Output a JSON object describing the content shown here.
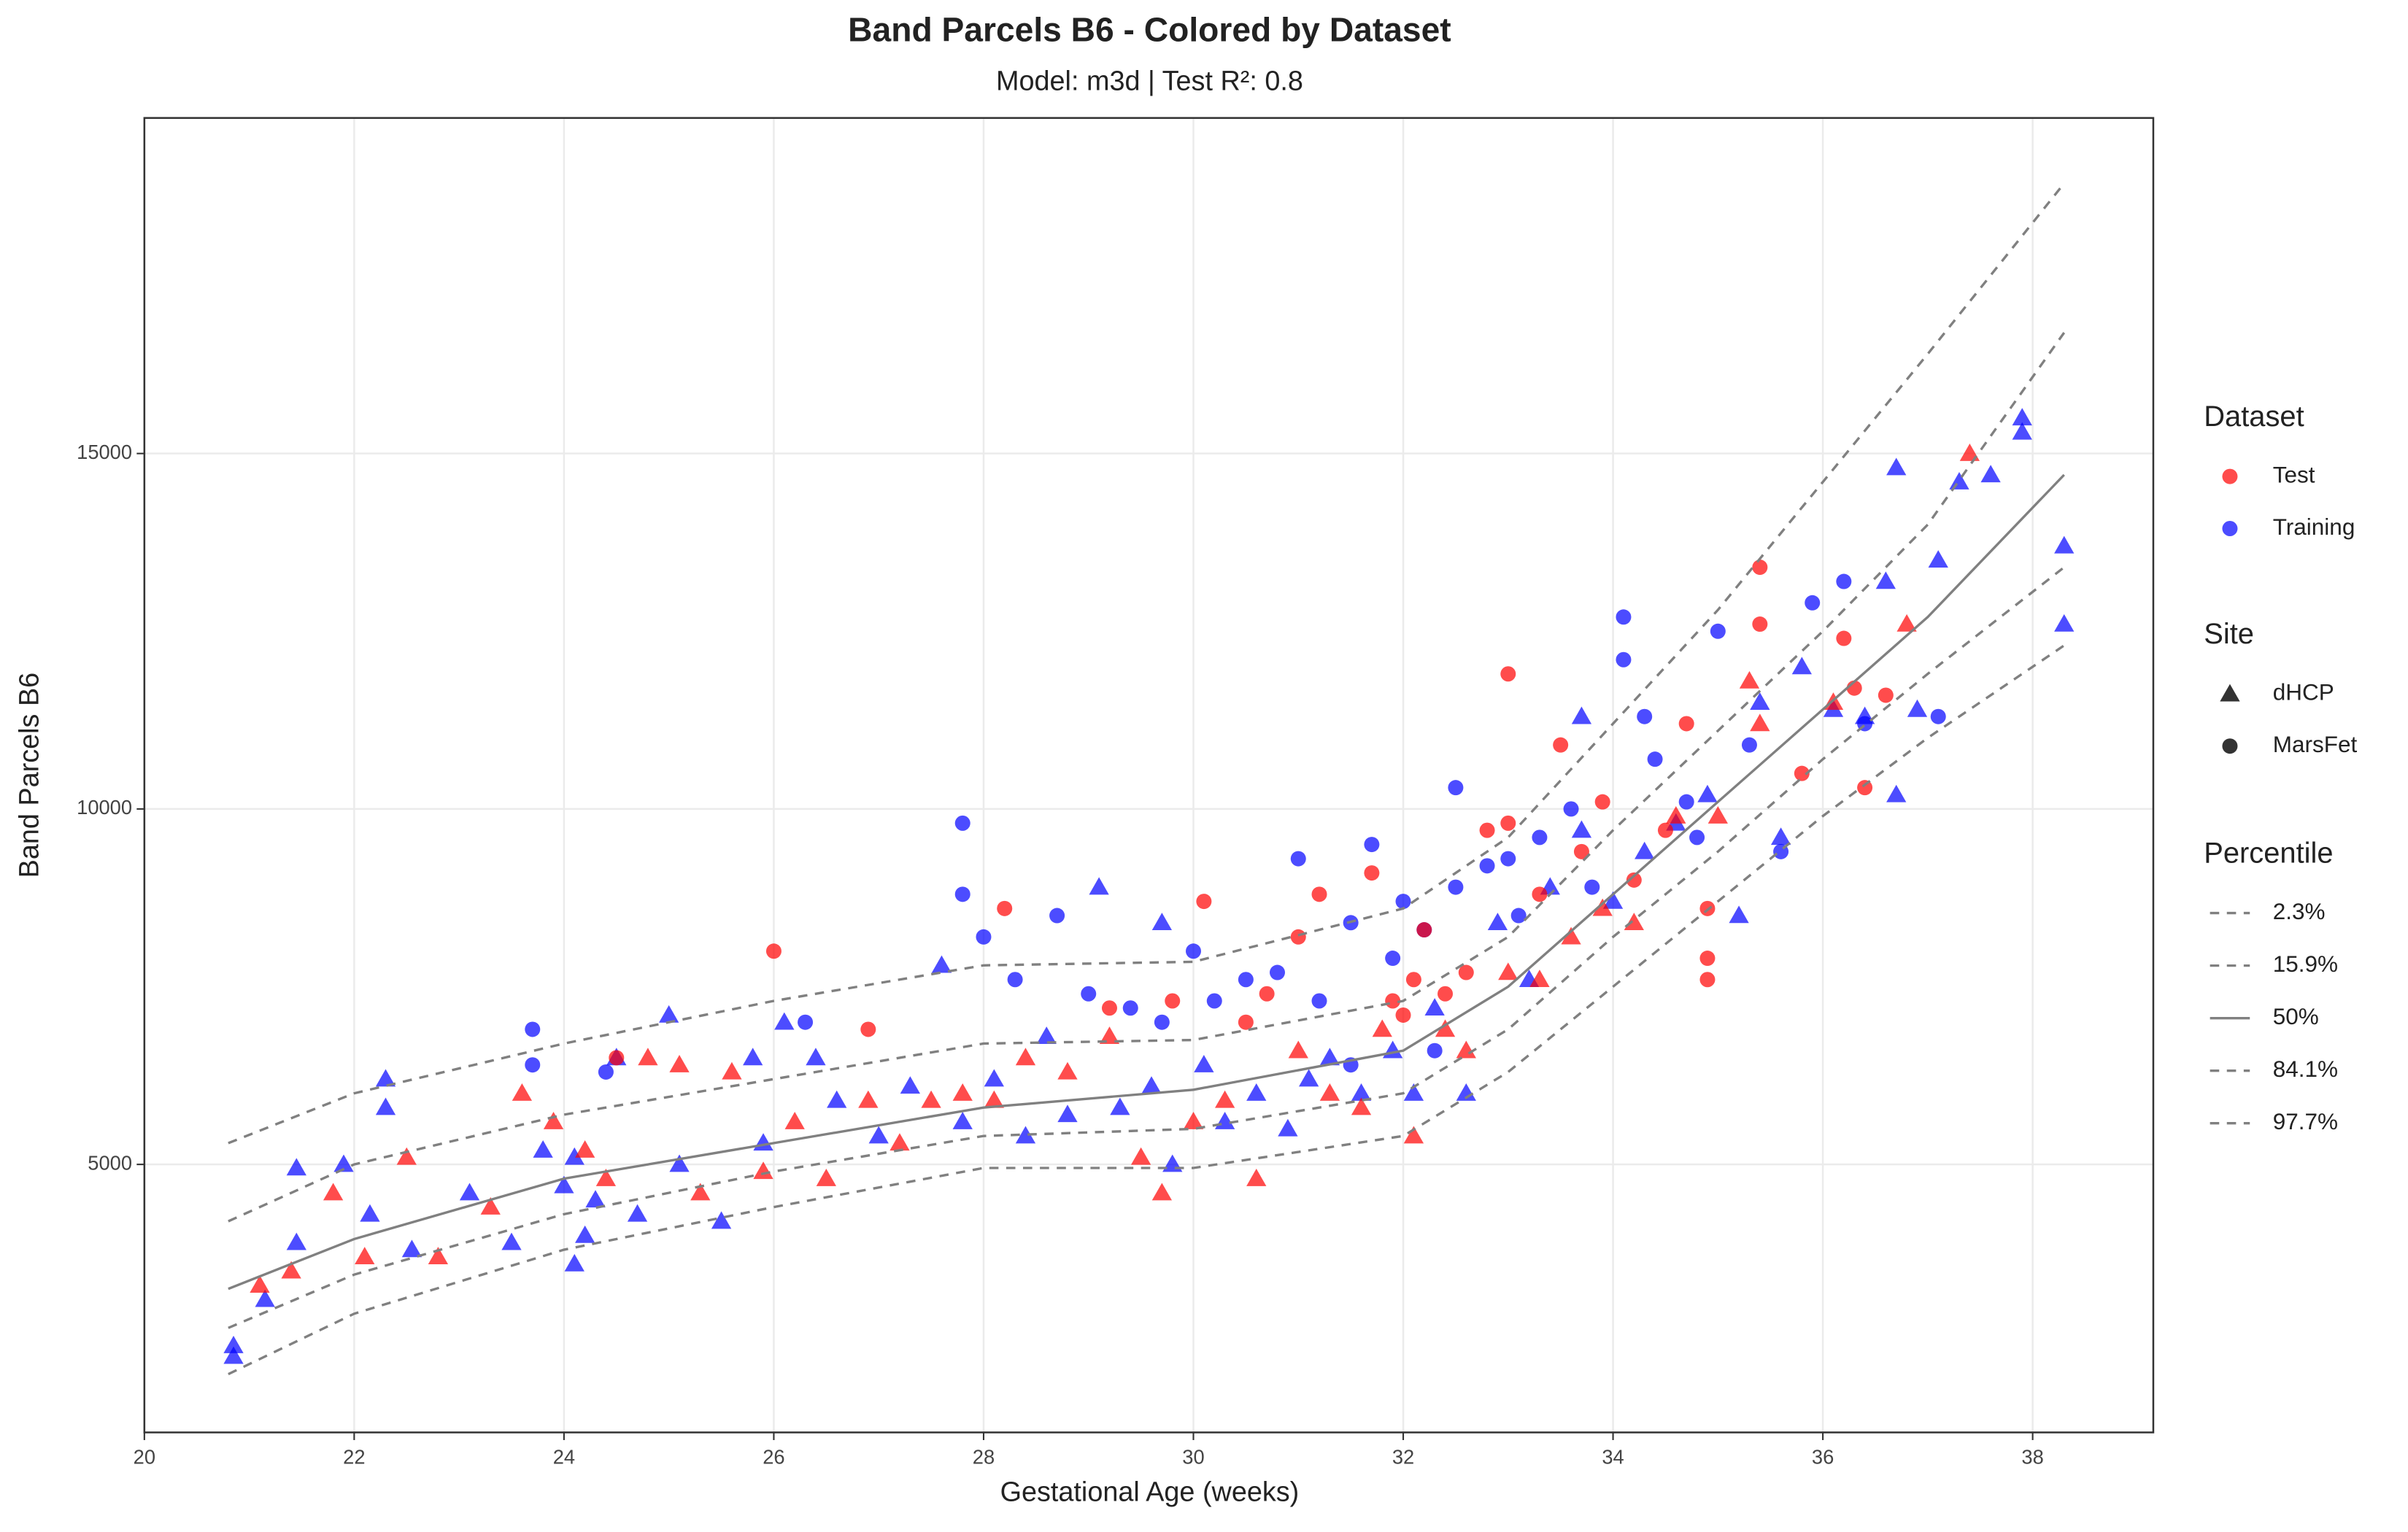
{
  "chart_data": {
    "type": "scatter",
    "title": "Band Parcels B6 - Colored by Dataset",
    "subtitle": "Model: m3d | Test R²: 0.8",
    "x_label": "Gestational Age (weeks)",
    "y_label": "Band Parcels B6",
    "xlim": [
      20,
      39.15
    ],
    "ylim": [
      1230,
      19720
    ],
    "xticks": [
      20,
      22,
      24,
      26,
      28,
      30,
      32,
      34,
      36,
      38
    ],
    "yticks": [
      5000,
      10000,
      15000
    ],
    "grid": true,
    "alpha": 0.7,
    "legend_position": "right",
    "dataset_legend": {
      "title": "Dataset",
      "entries": [
        {
          "name": "Test",
          "color": "#ff0000"
        },
        {
          "name": "Training",
          "color": "#0000ff"
        }
      ]
    },
    "site_legend": {
      "title": "Site",
      "entries": [
        {
          "name": "dHCP",
          "shape": "triangle"
        },
        {
          "name": "MarsFet",
          "shape": "circle"
        }
      ]
    },
    "series": [
      {
        "dataset": "Training",
        "site": "dHCP",
        "x": [
          20.85,
          20.85,
          21.15,
          21.45,
          21.45,
          21.9,
          22.15,
          22.3,
          22.3,
          22.55,
          23.1,
          23.5,
          23.8,
          24.0,
          24.1,
          24.1,
          24.2,
          24.3,
          24.5,
          24.7,
          25.0,
          25.1,
          25.5,
          25.8,
          25.9,
          26.1,
          26.4,
          26.6,
          27.0,
          27.3,
          27.6,
          27.8,
          28.1,
          28.4,
          28.6,
          28.8,
          29.1,
          29.3,
          29.6,
          29.7,
          29.8,
          30.1,
          30.3,
          30.6,
          30.9,
          31.1,
          31.3,
          31.6,
          31.9,
          32.1,
          32.3,
          32.6,
          32.9,
          33.2,
          33.4,
          33.7,
          33.7,
          34.0,
          34.3,
          34.6,
          34.9,
          35.2,
          35.4,
          35.6,
          35.8,
          36.1,
          36.4,
          36.6,
          36.7,
          36.7,
          36.9,
          37.1,
          37.3,
          37.6,
          37.9,
          37.9,
          38.3,
          38.3
        ],
        "y": [
          2450,
          2300,
          3100,
          4950,
          3900,
          5000,
          4300,
          6200,
          5800,
          3800,
          4600,
          3900,
          5200,
          4700,
          5100,
          3600,
          4000,
          4500,
          6500,
          4300,
          7100,
          5000,
          4200,
          6500,
          5300,
          7000,
          6500,
          5900,
          5400,
          6100,
          7800,
          5600,
          6200,
          5400,
          6800,
          5700,
          8900,
          5800,
          6100,
          8400,
          5000,
          6400,
          5600,
          6000,
          5500,
          6200,
          6500,
          6000,
          6600,
          6000,
          7200,
          6000,
          8400,
          7600,
          8900,
          9700,
          11300,
          8700,
          9400,
          9800,
          10200,
          8500,
          11500,
          9600,
          12000,
          11400,
          11300,
          13200,
          14800,
          10200,
          11400,
          13500,
          14600,
          14700,
          15500,
          15300,
          13700,
          12600
        ]
      },
      {
        "dataset": "Training",
        "site": "MarsFet",
        "x": [
          23.7,
          23.7,
          24.4,
          26.3,
          27.8,
          27.8,
          28.0,
          28.3,
          28.7,
          29.0,
          29.4,
          29.7,
          30.0,
          30.2,
          30.5,
          30.8,
          31.0,
          31.2,
          31.5,
          31.7,
          31.9,
          32.0,
          32.2,
          32.5,
          32.5,
          32.8,
          33.0,
          33.1,
          33.3,
          33.6,
          33.8,
          34.1,
          34.1,
          34.3,
          34.4,
          34.7,
          34.8,
          35.0,
          35.3,
          35.6,
          35.9,
          36.2,
          36.4,
          37.1,
          32.3,
          31.5
        ],
        "y": [
          6900,
          6400,
          6300,
          7000,
          9800,
          8800,
          8200,
          7600,
          8500,
          7400,
          7200,
          7000,
          8000,
          7300,
          7600,
          7700,
          9300,
          7300,
          8400,
          9500,
          7900,
          8700,
          8300,
          8900,
          10300,
          9200,
          9300,
          8500,
          9600,
          10000,
          8900,
          12700,
          12100,
          11300,
          10700,
          10100,
          9600,
          12500,
          10900,
          9400,
          12900,
          13200,
          11200,
          11300,
          6600,
          6400
        ]
      },
      {
        "dataset": "Test",
        "site": "dHCP",
        "x": [
          21.1,
          21.4,
          21.8,
          22.1,
          22.5,
          22.8,
          23.3,
          23.6,
          23.9,
          24.2,
          24.4,
          24.8,
          25.1,
          25.3,
          25.6,
          25.9,
          26.2,
          26.5,
          26.9,
          27.2,
          27.5,
          27.8,
          28.1,
          28.4,
          28.8,
          29.2,
          29.5,
          29.7,
          30.0,
          30.3,
          30.6,
          31.0,
          31.3,
          31.6,
          31.8,
          32.1,
          32.4,
          32.6,
          33.0,
          33.3,
          33.6,
          33.9,
          34.2,
          34.6,
          35.0,
          35.3,
          35.4,
          36.1,
          36.8,
          37.4
        ],
        "y": [
          3300,
          3500,
          4600,
          3700,
          5100,
          3700,
          4400,
          6000,
          5600,
          5200,
          4800,
          6500,
          6400,
          4600,
          6300,
          4900,
          5600,
          4800,
          5900,
          5300,
          5900,
          6000,
          5900,
          6500,
          6300,
          6800,
          5100,
          4600,
          5600,
          5900,
          4800,
          6600,
          6000,
          5800,
          6900,
          5400,
          6900,
          6600,
          7700,
          7600,
          8200,
          8600,
          8400,
          9900,
          9900,
          11800,
          11200,
          11500,
          12600,
          15000
        ]
      },
      {
        "dataset": "Test",
        "site": "MarsFet",
        "x": [
          24.5,
          26.0,
          26.9,
          28.2,
          29.2,
          29.8,
          30.1,
          30.5,
          30.7,
          31.0,
          31.2,
          31.7,
          31.9,
          32.0,
          32.1,
          32.2,
          32.4,
          32.6,
          32.8,
          33.0,
          33.0,
          33.3,
          33.5,
          33.7,
          33.9,
          34.2,
          34.5,
          34.7,
          34.9,
          34.9,
          34.9,
          35.4,
          35.4,
          35.8,
          36.2,
          36.3,
          36.4,
          36.6
        ],
        "y": [
          6500,
          8000,
          6900,
          8600,
          7200,
          7300,
          8700,
          7000,
          7400,
          8200,
          8800,
          9100,
          7300,
          7100,
          7600,
          8300,
          7400,
          7700,
          9700,
          11900,
          9800,
          8800,
          10900,
          9400,
          10100,
          9000,
          9700,
          11200,
          8600,
          7900,
          7600,
          13400,
          12600,
          10500,
          12400,
          11700,
          10300,
          11600
        ]
      }
    ],
    "percentile_curves": {
      "title": "Percentile",
      "color": "#808080",
      "x": [
        20.8,
        22,
        24,
        26,
        28,
        30,
        32,
        33,
        34,
        35,
        36,
        37,
        38.3
      ],
      "lines": [
        {
          "name": "2.3%",
          "dashed": true,
          "values": [
            2050,
            2900,
            3800,
            4400,
            4950,
            4950,
            5400,
            6300,
            7500,
            8700,
            9900,
            11000,
            12300
          ]
        },
        {
          "name": "15.9%",
          "dashed": true,
          "values": [
            2700,
            3450,
            4300,
            4900,
            5400,
            5500,
            6000,
            6900,
            8200,
            9400,
            10700,
            11900,
            13400
          ]
        },
        {
          "name": "50%",
          "dashed": false,
          "values": [
            3250,
            3950,
            4800,
            5300,
            5800,
            6050,
            6600,
            7500,
            8800,
            10100,
            11400,
            12700,
            14700
          ]
        },
        {
          "name": "84.1%",
          "dashed": true,
          "values": [
            4200,
            5000,
            5700,
            6200,
            6700,
            6750,
            7300,
            8200,
            9700,
            11100,
            12500,
            14000,
            16700
          ]
        },
        {
          "name": "97.7%",
          "dashed": true,
          "values": [
            5300,
            6000,
            6700,
            7300,
            7800,
            7850,
            8600,
            9600,
            11200,
            12800,
            14600,
            16400,
            18800
          ]
        }
      ]
    }
  }
}
